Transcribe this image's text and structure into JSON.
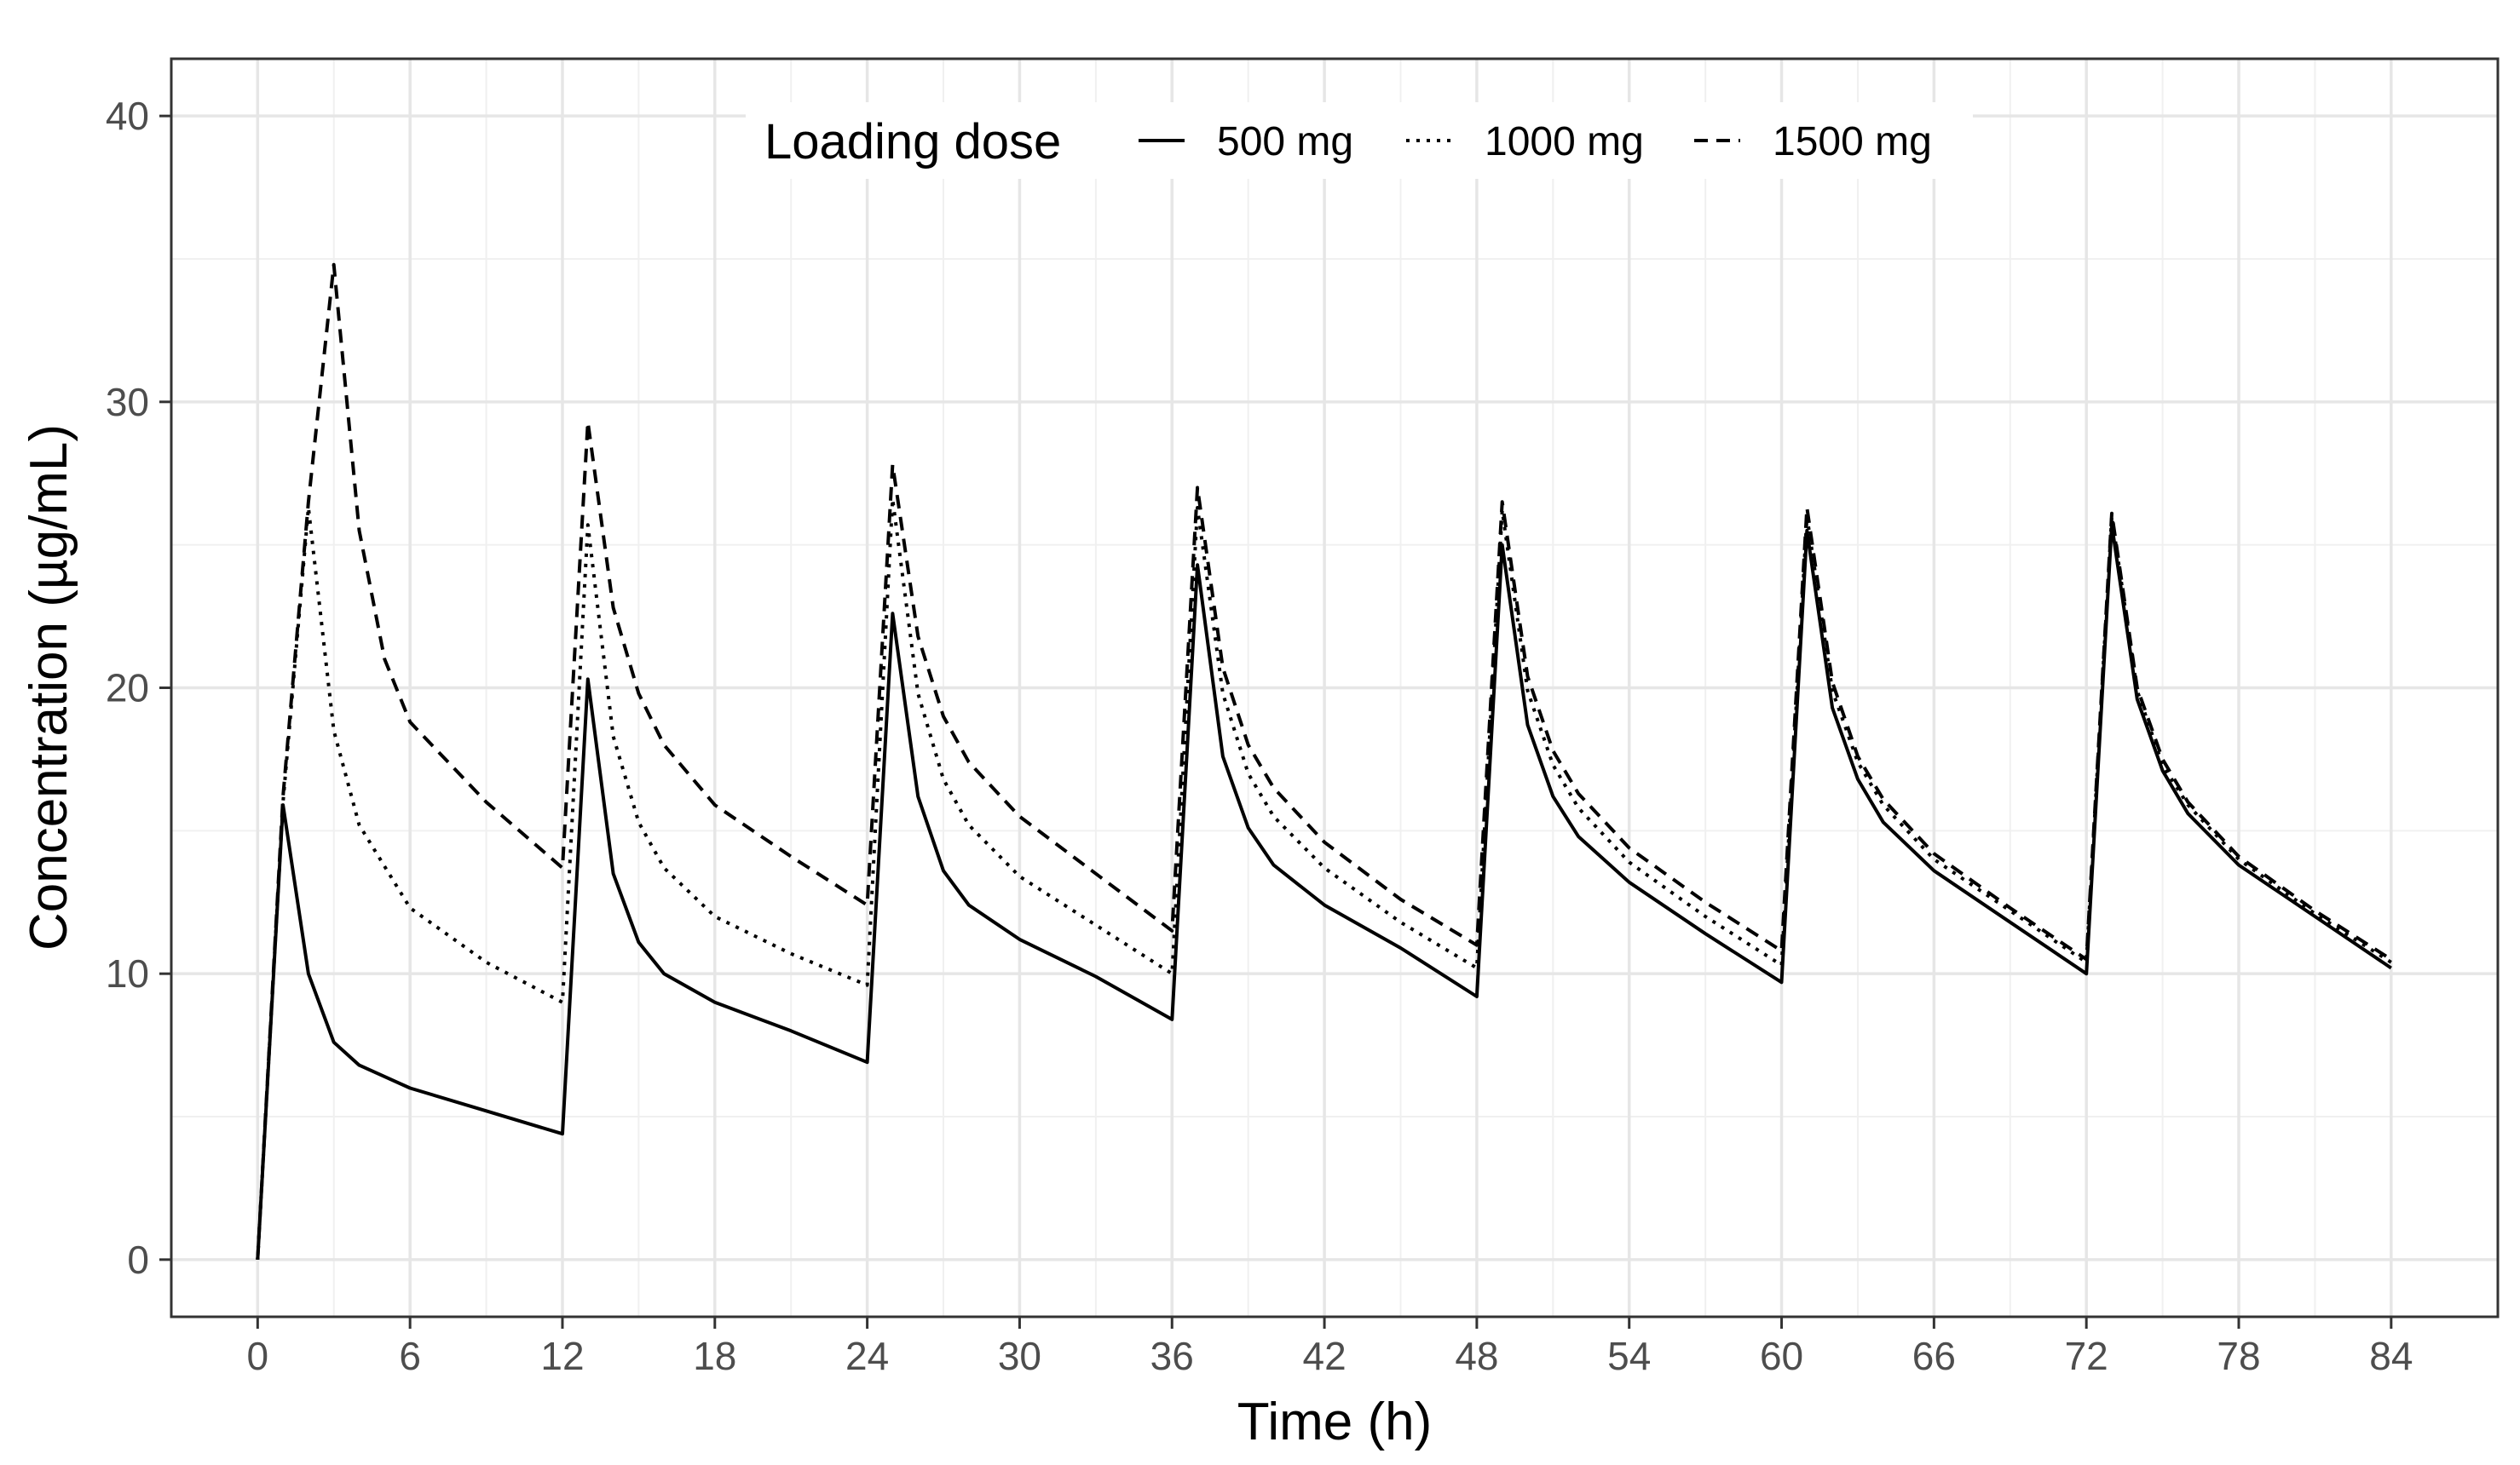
{
  "chart_data": {
    "type": "line",
    "title": "",
    "xlabel": "Time (h)",
    "ylabel": "Concentration (µg/mL)",
    "xlim": [
      -3.4,
      88.2
    ],
    "ylim": [
      -2.0,
      42.0
    ],
    "x_ticks": [
      0,
      6,
      12,
      18,
      24,
      30,
      36,
      42,
      48,
      54,
      60,
      66,
      72,
      78,
      84
    ],
    "y_ticks": [
      0,
      10,
      20,
      30,
      40
    ],
    "grid": true,
    "legend": {
      "title": "Loading dose",
      "position": "top-center-inside",
      "entries": [
        "500 mg",
        "1000 mg",
        "1500 mg"
      ]
    },
    "series": [
      {
        "name": "500 mg",
        "linestyle": "solid",
        "x": [
          0,
          1,
          2,
          3,
          4,
          6,
          9,
          12,
          13,
          14,
          15,
          16,
          18,
          21,
          24,
          25,
          26,
          27,
          28,
          30,
          33,
          36,
          37,
          38,
          39,
          40,
          42,
          45,
          48,
          49,
          50,
          51,
          52,
          54,
          57,
          60,
          61,
          62,
          63,
          64,
          66,
          69,
          72,
          73,
          74,
          75,
          76,
          78,
          81,
          84
        ],
        "y": [
          0,
          15.9,
          10.0,
          7.6,
          6.8,
          6.0,
          5.2,
          4.4,
          20.3,
          13.5,
          11.1,
          10.0,
          9.0,
          8.0,
          6.9,
          22.6,
          16.2,
          13.6,
          12.4,
          11.2,
          9.9,
          8.4,
          24.3,
          17.6,
          15.1,
          13.8,
          12.4,
          10.9,
          9.2,
          25.0,
          18.7,
          16.2,
          14.8,
          13.2,
          11.4,
          9.7,
          25.5,
          19.3,
          16.8,
          15.3,
          13.6,
          11.8,
          10.0,
          25.7,
          19.6,
          17.1,
          15.6,
          13.8,
          12.0,
          10.2
        ]
      },
      {
        "name": "1000 mg",
        "linestyle": "dotted",
        "x": [
          0,
          1,
          2,
          3,
          4,
          6,
          9,
          12,
          13,
          14,
          15,
          16,
          18,
          21,
          24,
          25,
          26,
          27,
          28,
          30,
          33,
          36,
          37,
          38,
          39,
          40,
          42,
          45,
          48,
          49,
          50,
          51,
          52,
          54,
          57,
          60,
          61,
          62,
          63,
          64,
          66,
          69,
          72,
          73,
          74,
          75,
          76,
          78,
          81,
          84
        ],
        "y": [
          0,
          16.0,
          26.3,
          18.5,
          15.2,
          12.3,
          10.4,
          9.0,
          25.7,
          18.3,
          15.3,
          13.7,
          12.0,
          10.7,
          9.6,
          26.6,
          19.8,
          16.8,
          15.2,
          13.4,
          11.7,
          10.0,
          26.3,
          19.8,
          17.0,
          15.5,
          13.7,
          11.8,
          10.2,
          26.2,
          19.9,
          17.3,
          15.8,
          13.9,
          12.0,
          10.3,
          26.0,
          19.9,
          17.4,
          15.9,
          14.0,
          12.2,
          10.4,
          26.0,
          19.9,
          17.3,
          15.9,
          14.0,
          12.1,
          10.4
        ]
      },
      {
        "name": "1500 mg",
        "linestyle": "dashed",
        "x": [
          0,
          1,
          2,
          3,
          4,
          5,
          6,
          9,
          12,
          13,
          14,
          15,
          16,
          18,
          21,
          24,
          25,
          26,
          27,
          28,
          30,
          33,
          36,
          37,
          38,
          39,
          40,
          42,
          45,
          48,
          49,
          50,
          51,
          52,
          54,
          57,
          60,
          61,
          62,
          63,
          64,
          66,
          69,
          72,
          73,
          74,
          75,
          76,
          78,
          81,
          84
        ],
        "y": [
          0,
          16.2,
          26.5,
          34.8,
          25.5,
          21.0,
          18.8,
          16.0,
          13.7,
          29.3,
          22.8,
          19.8,
          18.0,
          15.9,
          14.1,
          12.4,
          27.8,
          21.8,
          19.0,
          17.4,
          15.5,
          13.5,
          11.5,
          27.0,
          20.7,
          18.0,
          16.5,
          14.6,
          12.6,
          11.0,
          26.5,
          20.4,
          17.8,
          16.3,
          14.4,
          12.5,
          10.8,
          26.3,
          20.2,
          17.6,
          16.1,
          14.2,
          12.3,
          10.5,
          26.1,
          20.0,
          17.5,
          16.0,
          14.1,
          12.2,
          10.5
        ]
      }
    ]
  }
}
